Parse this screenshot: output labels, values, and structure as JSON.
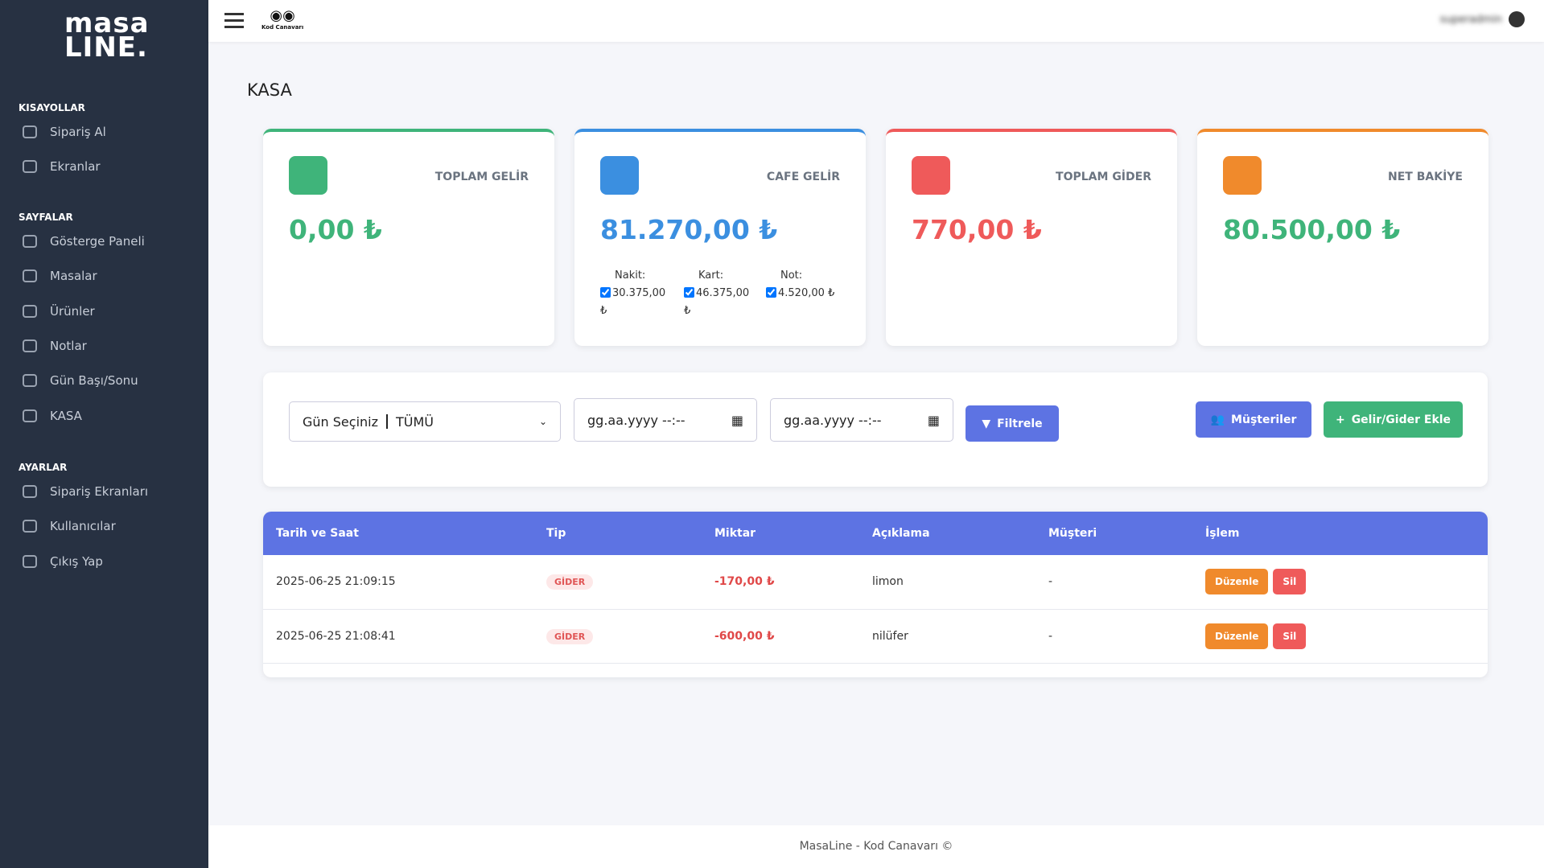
{
  "sidebar": {
    "logo": {
      "top": "masa",
      "bottom": "LINE."
    },
    "sections": [
      {
        "title": "KISAYOLLAR",
        "items": [
          "Sipariş Al",
          "Ekranlar"
        ]
      },
      {
        "title": "SAYFALAR",
        "items": [
          "Gösterge Paneli",
          "Masalar",
          "Ürünler",
          "Notlar",
          "Gün Başı/Sonu",
          "KASA"
        ]
      },
      {
        "title": "AYARLAR",
        "items": [
          "Sipariş Ekranları",
          "Kullanıcılar",
          "Çıkış Yap"
        ]
      }
    ]
  },
  "topbar": {
    "brand": "Kod Canavarı",
    "user": "superadmin"
  },
  "page_title": "KASA",
  "cards": [
    {
      "label": "TOPLAM GELİR",
      "value": "0,00 ₺"
    },
    {
      "label": "CAFE GELİR",
      "value": "81.270,00 ₺",
      "breakdown": [
        {
          "label": "Nakit:",
          "value": "30.375,00 ₺"
        },
        {
          "label": "Kart:",
          "value": "46.375,00 ₺"
        },
        {
          "label": "Not:",
          "value": "4.520,00 ₺"
        }
      ]
    },
    {
      "label": "TOPLAM GİDER",
      "value": "770,00 ₺"
    },
    {
      "label": "NET BAKİYE",
      "value": "80.500,00 ₺"
    }
  ],
  "filter": {
    "day_label": "Gün Seçiniz",
    "day_value": "TÜMÜ",
    "date_placeholder": "gg.aa.yyyy --:--",
    "filter_button": "Filtrele",
    "customers_button": "Müşteriler",
    "add_button": "Gelir/Gider Ekle"
  },
  "table": {
    "headers": [
      "Tarih ve Saat",
      "Tip",
      "Miktar",
      "Açıklama",
      "Müşteri",
      "İşlem"
    ],
    "rows": [
      [
        "2025-06-25 21:09:15",
        "GİDER",
        "-170,00 ₺",
        "limon",
        "-"
      ],
      [
        "2025-06-25 21:08:41",
        "GİDER",
        "-600,00 ₺",
        "nilüfer",
        "-"
      ]
    ],
    "actions": [
      "Düzenle",
      "Sil"
    ]
  },
  "footer": "MasaLine - Kod Canavarı ©"
}
